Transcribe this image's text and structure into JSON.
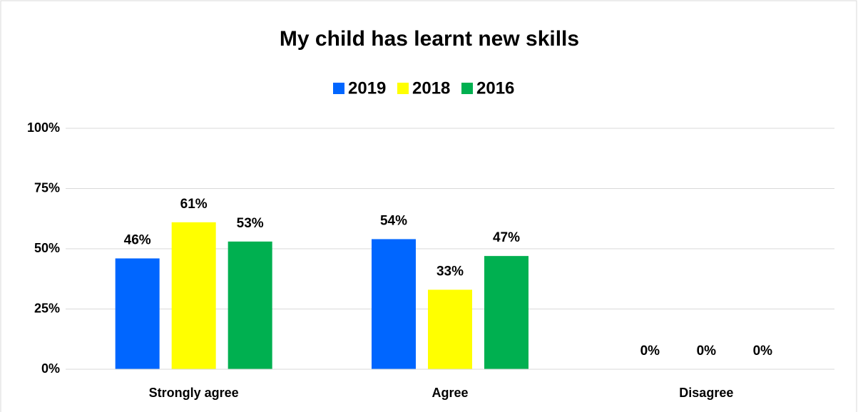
{
  "chart_data": {
    "type": "bar",
    "title": "My child has learnt new skills",
    "categories": [
      "Strongly agree",
      "Agree",
      "Disagree"
    ],
    "series": [
      {
        "name": "2019",
        "color": "#0066FF",
        "values": [
          46,
          54,
          0
        ],
        "value_labels": [
          "46%",
          "54%",
          "0%"
        ]
      },
      {
        "name": "2018",
        "color": "#FFFF00",
        "values": [
          61,
          33,
          0
        ],
        "value_labels": [
          "61%",
          "33%",
          "0%"
        ]
      },
      {
        "name": "2016",
        "color": "#00B050",
        "values": [
          53,
          47,
          0
        ],
        "value_labels": [
          "53%",
          "47%",
          "0%"
        ]
      }
    ],
    "ylim": [
      0,
      100
    ],
    "yticks": [
      {
        "value": 0,
        "label": "0%"
      },
      {
        "value": 25,
        "label": "25%"
      },
      {
        "value": 50,
        "label": "50%"
      },
      {
        "value": 75,
        "label": "75%"
      },
      {
        "value": 100,
        "label": "100%"
      }
    ],
    "grid": true,
    "legend": "top"
  }
}
